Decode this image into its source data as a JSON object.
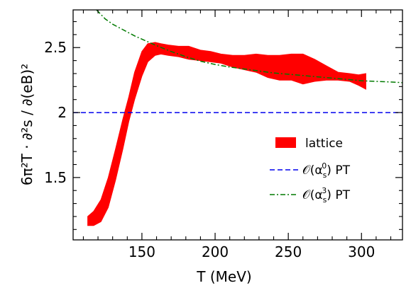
{
  "chart_data": {
    "type": "area",
    "xlabel": "T (MeV)",
    "ylabel": "6π²T · ∂²s / ∂(eB)²",
    "xlim": [
      103,
      328
    ],
    "ylim": [
      1.02,
      2.79
    ],
    "x_ticks": [
      150,
      200,
      250,
      300
    ],
    "x_tick_labels": [
      "150",
      "200",
      "250",
      "300"
    ],
    "y_ticks": [
      1.5,
      2,
      2.5
    ],
    "y_tick_labels": [
      "1.5",
      "2",
      "2.5"
    ],
    "grid": false,
    "legend_position": "center-right",
    "series": [
      {
        "name": "lattice",
        "style": "band",
        "color": "#ff0000",
        "x": [
          113,
          117,
          122,
          127,
          132,
          137,
          141,
          145,
          150,
          154,
          159,
          163,
          168,
          175,
          182,
          190,
          197,
          204,
          212,
          220,
          228,
          236,
          244,
          252,
          260,
          268,
          276,
          284,
          292,
          298,
          303
        ],
        "upper": [
          1.2,
          1.24,
          1.33,
          1.5,
          1.72,
          1.95,
          2.12,
          2.31,
          2.47,
          2.53,
          2.54,
          2.53,
          2.52,
          2.51,
          2.51,
          2.48,
          2.47,
          2.45,
          2.44,
          2.44,
          2.45,
          2.44,
          2.44,
          2.45,
          2.45,
          2.41,
          2.36,
          2.31,
          2.3,
          2.29,
          2.3
        ],
        "lower": [
          1.13,
          1.13,
          1.16,
          1.27,
          1.48,
          1.72,
          1.93,
          2.1,
          2.28,
          2.39,
          2.44,
          2.45,
          2.44,
          2.43,
          2.41,
          2.4,
          2.39,
          2.38,
          2.35,
          2.33,
          2.31,
          2.27,
          2.25,
          2.25,
          2.22,
          2.24,
          2.25,
          2.25,
          2.24,
          2.21,
          2.18
        ]
      },
      {
        "name": "𝒪(α_s^0) PT",
        "style": "dashed",
        "color": "#0000ee",
        "x": [
          103,
          328
        ],
        "y": [
          2.0,
          2.0
        ]
      },
      {
        "name": "𝒪(α_s^3) PT",
        "style": "dashdot",
        "color": "#007a00",
        "x": [
          119,
          125,
          130,
          135,
          140,
          145,
          150,
          155,
          160,
          170,
          180,
          190,
          200,
          210,
          220,
          230,
          240,
          250,
          260,
          270,
          280,
          290,
          300,
          310,
          320,
          328
        ],
        "y": [
          2.79,
          2.72,
          2.68,
          2.65,
          2.62,
          2.59,
          2.565,
          2.54,
          2.515,
          2.47,
          2.43,
          2.395,
          2.37,
          2.35,
          2.335,
          2.32,
          2.305,
          2.295,
          2.285,
          2.275,
          2.265,
          2.255,
          2.245,
          2.24,
          2.235,
          2.23
        ]
      }
    ]
  },
  "legend": {
    "items": [
      {
        "label": "lattice",
        "swatch": "band"
      },
      {
        "label_main": "𝒪(α",
        "label_sub": "s",
        "label_sup": "0",
        "label_tail": ") PT",
        "swatch": "dashed"
      },
      {
        "label_main": "𝒪(α",
        "label_sub": "s",
        "label_sup": "3",
        "label_tail": ") PT",
        "swatch": "dashdot"
      }
    ]
  }
}
